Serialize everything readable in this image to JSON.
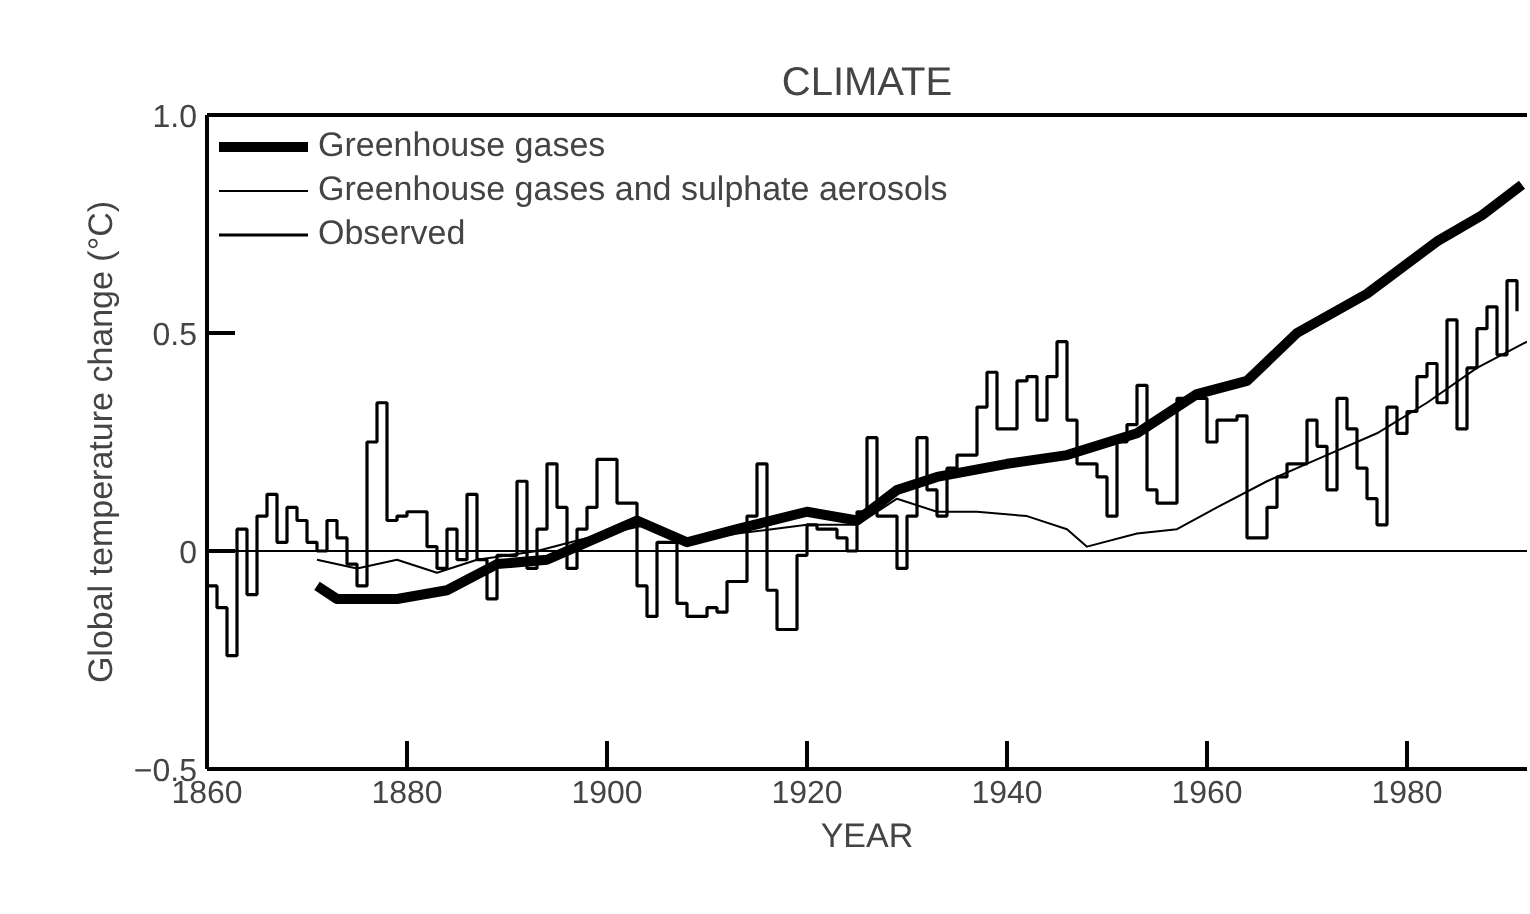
{
  "chart_data": {
    "type": "line",
    "title": "CLIMATE",
    "xlabel": "YEAR",
    "ylabel": "Global temperature change (°C)",
    "xlim": [
      1860,
      1992
    ],
    "xticks": [
      1860,
      1880,
      1900,
      1920,
      1940,
      1960,
      1980
    ],
    "ylim": [
      -0.5,
      1.0
    ],
    "yticks": [
      -0.5,
      0,
      0.5,
      {
        "value": 1.0,
        "label": "1.0"
      }
    ],
    "grid": false,
    "legend": "top left",
    "marker": "none",
    "line_style": "solid",
    "ref_lines": [
      {
        "axis": "y",
        "value": 0,
        "color": "#000000"
      }
    ],
    "series": [
      {
        "name": "Greenhouse gases",
        "color": "#000000",
        "x": [
          1871,
          1873,
          1876,
          1879,
          1884,
          1889,
          1894,
          1898,
          1903,
          1908,
          1913,
          1920,
          1925,
          1929,
          1933,
          1940,
          1946,
          1953,
          1959,
          1964,
          1969,
          1976,
          1983,
          1987.5,
          1991.5
        ],
        "values": [
          -0.08,
          -0.11,
          -0.11,
          -0.11,
          -0.09,
          -0.03,
          -0.02,
          0.02,
          0.07,
          0.02,
          0.05,
          0.09,
          0.07,
          0.14,
          0.17,
          0.2,
          0.22,
          0.27,
          0.36,
          0.39,
          0.5,
          0.59,
          0.71,
          0.77,
          0.84
        ]
      },
      {
        "name": "Greenhouse gases and sulphate aerosols",
        "color": "#000000",
        "x": [
          1871,
          1875,
          1879,
          1883,
          1887,
          1893,
          1898,
          1904,
          1908,
          1913,
          1920,
          1925,
          1929,
          1933,
          1937,
          1942,
          1946,
          1948,
          1953,
          1957,
          1961,
          1966,
          1971,
          1977,
          1982,
          1987,
          1992
        ],
        "values": [
          -0.02,
          -0.04,
          -0.02,
          -0.05,
          -0.02,
          0,
          0.03,
          0.06,
          0.02,
          0.04,
          0.06,
          0.06,
          0.12,
          0.09,
          0.09,
          0.08,
          0.05,
          0.01,
          0.04,
          0.05,
          0.1,
          0.16,
          0.21,
          0.27,
          0.34,
          0.42,
          0.48
        ]
      },
      {
        "name": "Observed",
        "type": "step",
        "color": "#000000",
        "x": [
          1860,
          1861,
          1862,
          1863,
          1864,
          1865,
          1866,
          1867,
          1868,
          1869,
          1870,
          1871,
          1872,
          1873,
          1874,
          1875,
          1876,
          1877,
          1878,
          1879,
          1880,
          1881,
          1882,
          1883,
          1884,
          1885,
          1886,
          1887,
          1888,
          1889,
          1890,
          1891,
          1892,
          1893,
          1894,
          1895,
          1896,
          1897,
          1898,
          1899,
          1900,
          1901,
          1902,
          1903,
          1904,
          1905,
          1906,
          1907,
          1908,
          1909,
          1910,
          1911,
          1912,
          1913,
          1914,
          1915,
          1916,
          1917,
          1918,
          1919,
          1920,
          1921,
          1922,
          1923,
          1924,
          1925,
          1926,
          1927,
          1928,
          1929,
          1930,
          1931,
          1932,
          1933,
          1934,
          1935,
          1936,
          1937,
          1938,
          1939,
          1940,
          1941,
          1942,
          1943,
          1944,
          1945,
          1946,
          1947,
          1948,
          1949,
          1950,
          1951,
          1952,
          1953,
          1954,
          1955,
          1956,
          1957,
          1958,
          1959,
          1960,
          1961,
          1962,
          1963,
          1964,
          1965,
          1966,
          1967,
          1968,
          1969,
          1970,
          1971,
          1972,
          1973,
          1974,
          1975,
          1976,
          1977,
          1978,
          1979,
          1980,
          1981,
          1982,
          1983,
          1984,
          1985,
          1986,
          1987,
          1988,
          1989,
          1990,
          1991
        ],
        "values": [
          -0.08,
          -0.13,
          -0.24,
          0.05,
          -0.1,
          0.08,
          0.13,
          0.02,
          0.1,
          0.07,
          0.02,
          0.0,
          0.07,
          0.03,
          -0.03,
          -0.08,
          0.25,
          0.34,
          0.07,
          0.08,
          0.09,
          0.09,
          0.01,
          -0.04,
          0.05,
          -0.02,
          0.13,
          -0.02,
          -0.11,
          -0.01,
          -0.01,
          0.16,
          -0.04,
          0.05,
          0.2,
          0.1,
          -0.04,
          0.05,
          0.1,
          0.21,
          0.21,
          0.11,
          0.11,
          -0.08,
          -0.15,
          0.02,
          0.02,
          -0.12,
          -0.15,
          -0.15,
          -0.13,
          -0.14,
          -0.07,
          -0.07,
          0.08,
          0.2,
          -0.09,
          -0.18,
          -0.18,
          -0.01,
          0.06,
          0.05,
          0.05,
          0.03,
          0.0,
          0.09,
          0.26,
          0.08,
          0.08,
          -0.04,
          0.08,
          0.26,
          0.14,
          0.08,
          0.19,
          0.22,
          0.22,
          0.33,
          0.41,
          0.28,
          0.28,
          0.39,
          0.4,
          0.3,
          0.4,
          0.48,
          0.3,
          0.2,
          0.2,
          0.17,
          0.08,
          0.25,
          0.29,
          0.38,
          0.14,
          0.11,
          0.11,
          0.35,
          0.35,
          0.35,
          0.25,
          0.3,
          0.3,
          0.31,
          0.03,
          0.03,
          0.1,
          0.17,
          0.2,
          0.2,
          0.3,
          0.24,
          0.14,
          0.35,
          0.28,
          0.19,
          0.12,
          0.06,
          0.33,
          0.27,
          0.32,
          0.4,
          0.43,
          0.34,
          0.53,
          0.28,
          0.42,
          0.51,
          0.56,
          0.45,
          0.62,
          0.55
        ]
      }
    ]
  }
}
